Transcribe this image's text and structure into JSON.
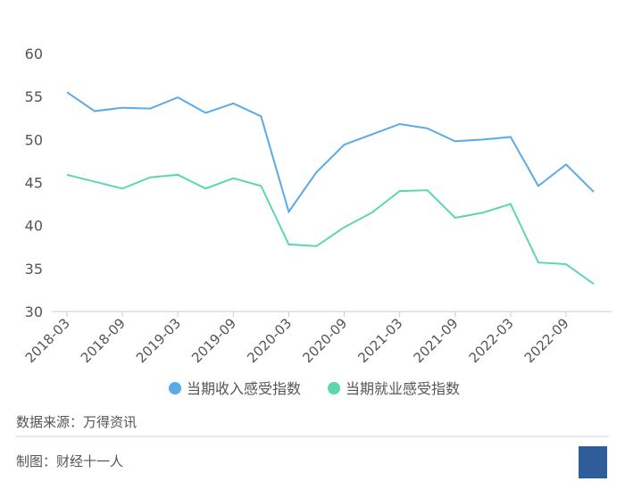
{
  "chart_data": {
    "type": "line",
    "categories": [
      "2018-03",
      null,
      "2018-09",
      null,
      "2019-03",
      null,
      "2019-09",
      null,
      "2020-03",
      null,
      "2020-09",
      null,
      "2021-03",
      null,
      "2021-09",
      null,
      "2022-03",
      null,
      "2022-09",
      null
    ],
    "series": [
      {
        "name": "当期收入感受指数",
        "color": "#5aaae8",
        "values": [
          55.5,
          53.3,
          53.7,
          53.6,
          54.9,
          53.1,
          54.2,
          52.7,
          41.6,
          46.2,
          49.4,
          50.6,
          51.8,
          51.3,
          49.8,
          50.0,
          50.3,
          44.6,
          47.1,
          43.9
        ]
      },
      {
        "name": "当期就业感受指数",
        "color": "#5dd6b0",
        "values": [
          45.9,
          45.1,
          44.3,
          45.6,
          45.9,
          44.3,
          45.5,
          44.6,
          37.8,
          37.6,
          39.8,
          41.5,
          44.0,
          44.1,
          40.9,
          41.5,
          42.5,
          35.7,
          35.5,
          33.2
        ]
      }
    ],
    "ylim": [
      30,
      60
    ],
    "yticks": [
      30,
      35,
      40,
      45,
      50,
      55,
      60
    ],
    "grid": false,
    "legend": "bottom"
  },
  "source": "数据来源：万得资讯",
  "credit": "制图：财经十一人"
}
